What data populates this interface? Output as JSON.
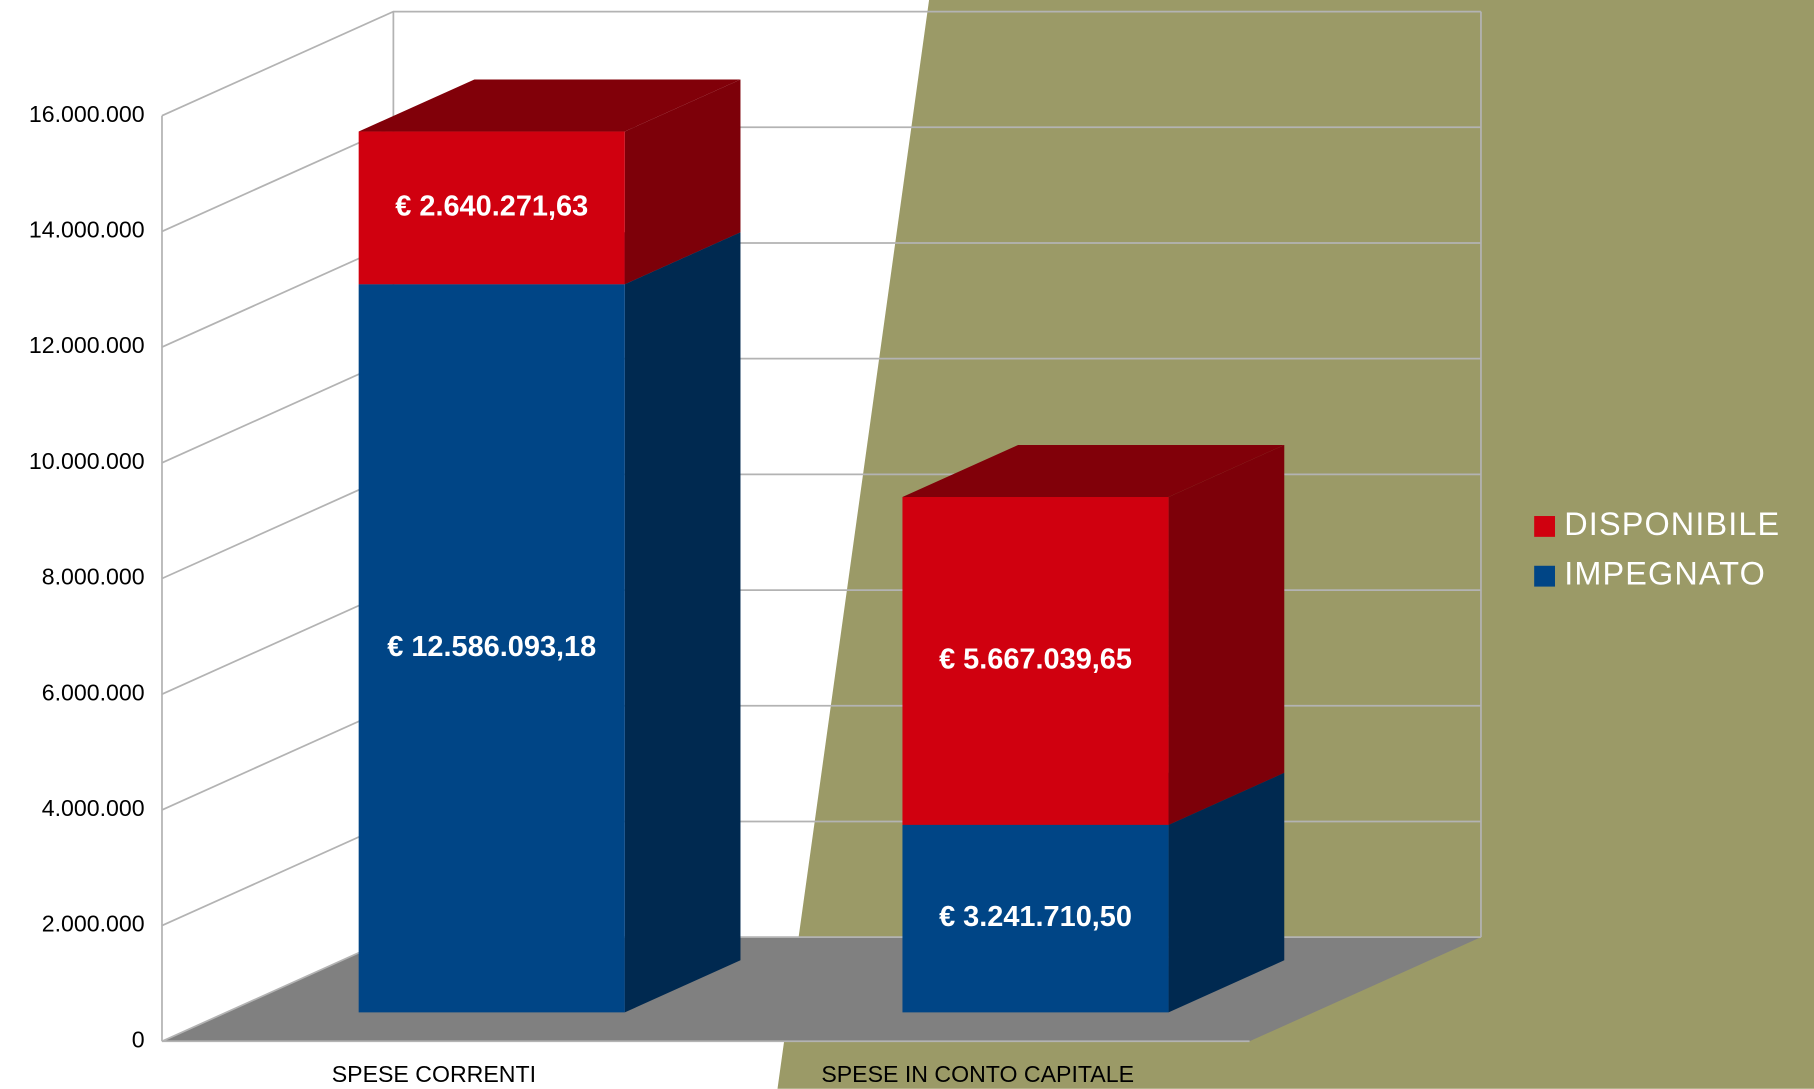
{
  "chart_data": {
    "type": "bar",
    "stacked": true,
    "categories": [
      "SPESE CORRENTI",
      "SPESE IN CONTO CAPITALE"
    ],
    "series": [
      {
        "name": "IMPEGNATO",
        "color": "#004586",
        "values": [
          12586093.18,
          3241710.5
        ],
        "value_labels": [
          "€ 12.586.093,18",
          "€ 3.241.710,50"
        ]
      },
      {
        "name": "DISPONIBILE",
        "color": "#d0000f",
        "values": [
          2640271.63,
          5667039.65
        ],
        "value_labels": [
          "€ 2.640.271,63",
          "€ 5.667.039,65"
        ]
      }
    ],
    "ylim": [
      0,
      16000000
    ],
    "yticks": [
      {
        "value": 0,
        "label": "0"
      },
      {
        "value": 2000000,
        "label": "2.000.000"
      },
      {
        "value": 4000000,
        "label": "4.000.000"
      },
      {
        "value": 6000000,
        "label": "6.000.000"
      },
      {
        "value": 8000000,
        "label": "8.000.000"
      },
      {
        "value": 10000000,
        "label": "10.000.000"
      },
      {
        "value": 12000000,
        "label": "12.000.000"
      },
      {
        "value": 14000000,
        "label": "14.000.000"
      },
      {
        "value": 16000000,
        "label": "16.000.000"
      }
    ],
    "grid": true,
    "legend": "right"
  }
}
